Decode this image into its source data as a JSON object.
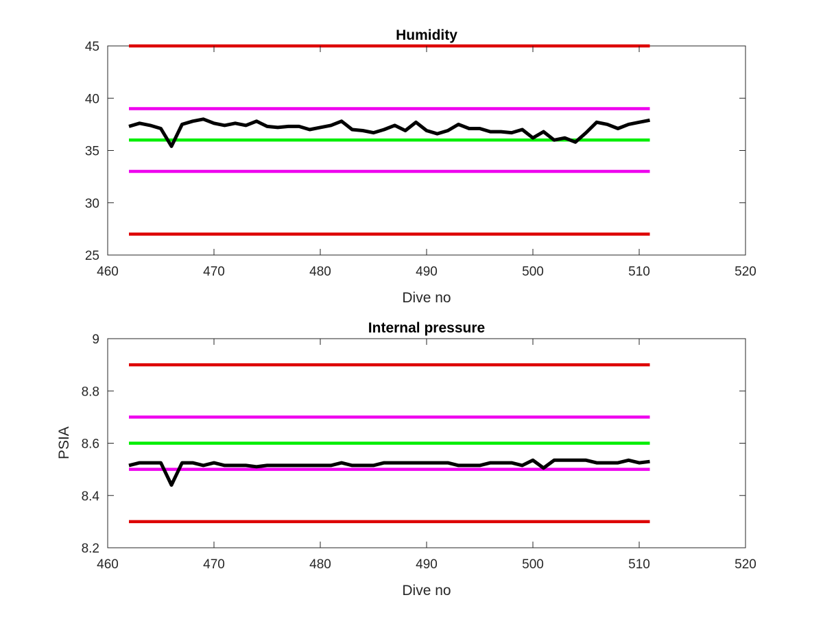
{
  "chart_data": [
    {
      "type": "line",
      "title": "Humidity",
      "xlabel": "Dive no",
      "ylabel": "",
      "xlim": [
        460,
        520
      ],
      "ylim": [
        25,
        45
      ],
      "xticks": [
        460,
        470,
        480,
        490,
        500,
        510,
        520
      ],
      "yticks": [
        25,
        30,
        35,
        40,
        45
      ],
      "grid": false,
      "series": [
        {
          "role": "limit",
          "color": "#dd0000",
          "x": [
            462,
            511
          ],
          "y": [
            45,
            45
          ]
        },
        {
          "role": "limit",
          "color": "#ee00ee",
          "x": [
            462,
            511
          ],
          "y": [
            39,
            39
          ]
        },
        {
          "role": "nominal",
          "color": "#00ee00",
          "x": [
            462,
            511
          ],
          "y": [
            36,
            36
          ]
        },
        {
          "role": "limit",
          "color": "#ee00ee",
          "x": [
            462,
            511
          ],
          "y": [
            33,
            33
          ]
        },
        {
          "role": "limit",
          "color": "#dd0000",
          "x": [
            462,
            511
          ],
          "y": [
            27,
            27
          ]
        },
        {
          "role": "data",
          "color": "#000000",
          "x": [
            462,
            463,
            464,
            465,
            466,
            467,
            468,
            469,
            470,
            471,
            472,
            473,
            474,
            475,
            476,
            477,
            478,
            479,
            480,
            481,
            482,
            483,
            484,
            485,
            486,
            487,
            488,
            489,
            490,
            491,
            492,
            493,
            494,
            495,
            496,
            497,
            498,
            499,
            500,
            501,
            502,
            503,
            504,
            505,
            506,
            507,
            508,
            509,
            510,
            511
          ],
          "y": [
            37.3,
            37.6,
            37.4,
            37.1,
            35.4,
            37.5,
            37.8,
            38.0,
            37.6,
            37.4,
            37.6,
            37.4,
            37.8,
            37.3,
            37.2,
            37.3,
            37.3,
            37.0,
            37.2,
            37.4,
            37.8,
            37.0,
            36.9,
            36.7,
            37.0,
            37.4,
            36.9,
            37.7,
            36.9,
            36.6,
            36.9,
            37.5,
            37.1,
            37.1,
            36.8,
            36.8,
            36.7,
            37.0,
            36.2,
            36.8,
            36.0,
            36.2,
            35.8,
            36.7,
            37.7,
            37.5,
            37.1,
            37.5,
            37.7,
            37.9
          ]
        }
      ]
    },
    {
      "type": "line",
      "title": "Internal pressure",
      "xlabel": "Dive no",
      "ylabel": "PSIA",
      "xlim": [
        460,
        520
      ],
      "ylim": [
        8.2,
        9
      ],
      "xticks": [
        460,
        470,
        480,
        490,
        500,
        510,
        520
      ],
      "yticks": [
        8.2,
        8.4,
        8.6,
        8.8,
        9
      ],
      "grid": false,
      "series": [
        {
          "role": "limit",
          "color": "#dd0000",
          "x": [
            462,
            511
          ],
          "y": [
            8.9,
            8.9
          ]
        },
        {
          "role": "limit",
          "color": "#ee00ee",
          "x": [
            462,
            511
          ],
          "y": [
            8.7,
            8.7
          ]
        },
        {
          "role": "nominal",
          "color": "#00ee00",
          "x": [
            462,
            511
          ],
          "y": [
            8.6,
            8.6
          ]
        },
        {
          "role": "limit",
          "color": "#ee00ee",
          "x": [
            462,
            511
          ],
          "y": [
            8.5,
            8.5
          ]
        },
        {
          "role": "limit",
          "color": "#dd0000",
          "x": [
            462,
            511
          ],
          "y": [
            8.3,
            8.3
          ]
        },
        {
          "role": "data",
          "color": "#000000",
          "x": [
            462,
            463,
            464,
            465,
            466,
            467,
            468,
            469,
            470,
            471,
            472,
            473,
            474,
            475,
            476,
            477,
            478,
            479,
            480,
            481,
            482,
            483,
            484,
            485,
            486,
            487,
            488,
            489,
            490,
            491,
            492,
            493,
            494,
            495,
            496,
            497,
            498,
            499,
            500,
            501,
            502,
            503,
            504,
            505,
            506,
            507,
            508,
            509,
            510,
            511
          ],
          "y": [
            8.515,
            8.525,
            8.525,
            8.525,
            8.44,
            8.525,
            8.525,
            8.515,
            8.525,
            8.515,
            8.515,
            8.515,
            8.51,
            8.515,
            8.515,
            8.515,
            8.515,
            8.515,
            8.515,
            8.515,
            8.525,
            8.515,
            8.515,
            8.515,
            8.525,
            8.525,
            8.525,
            8.525,
            8.525,
            8.525,
            8.525,
            8.515,
            8.515,
            8.515,
            8.525,
            8.525,
            8.525,
            8.515,
            8.535,
            8.505,
            8.535,
            8.535,
            8.535,
            8.535,
            8.525,
            8.525,
            8.525,
            8.535,
            8.525,
            8.53
          ]
        }
      ]
    }
  ]
}
